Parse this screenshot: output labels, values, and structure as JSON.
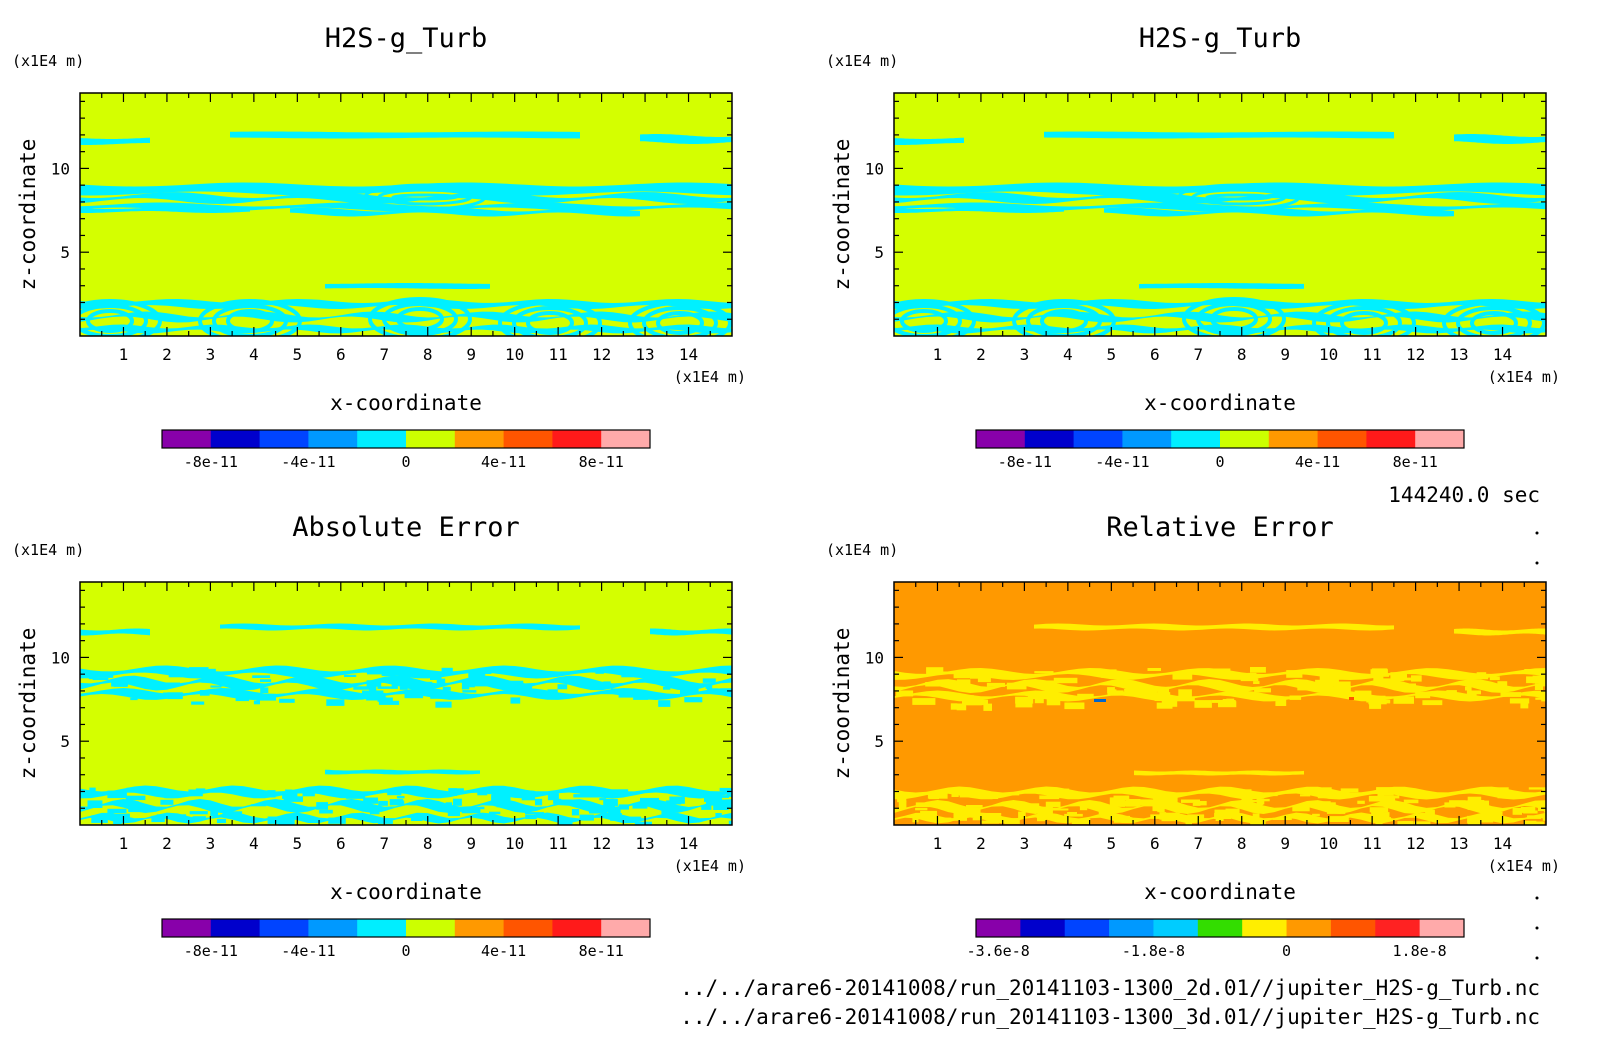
{
  "time_label": "144240.0 sec",
  "source_files": [
    "../../arare6-20141008/run_20141103-1300_2d.01//jupiter_H2S-g_Turb.nc",
    "../../arare6-20141008/run_20141103-1300_3d.01//jupiter_H2S-g_Turb.nc"
  ],
  "colors": {
    "background_field": "#d4ff00",
    "anomaly_field": "#00f0ff",
    "relative_background": "#ff9900",
    "relative_anomaly": "#ffee00",
    "relative_speck_blue": "#0066cc",
    "relative_speck_red": "#ff5500"
  },
  "chart_data": [
    {
      "type": "heatmap",
      "title": "H2S-g_Turb",
      "xlabel": "x-coordinate",
      "ylabel": "z-coordinate",
      "x_unit": "(x1E4 m)",
      "y_unit": "(x1E4 m)",
      "xlim": [
        0,
        15
      ],
      "ylim": [
        0,
        14.5
      ],
      "x_ticks": [
        1,
        2,
        3,
        4,
        5,
        6,
        7,
        8,
        9,
        10,
        11,
        12,
        13,
        14
      ],
      "y_ticks": [
        5,
        10
      ],
      "colorbar": {
        "colors": [
          "#8800aa",
          "#0000cc",
          "#0044ff",
          "#0099ff",
          "#00eeff",
          "#ccff00",
          "#ff9900",
          "#ff5500",
          "#ff1a1a",
          "#ffaaaa"
        ],
        "tick_labels": [
          "-8e-11",
          "-4e-11",
          "0",
          "4e-11",
          "8e-11"
        ]
      }
    },
    {
      "type": "heatmap",
      "title": "H2S-g_Turb",
      "xlabel": "x-coordinate",
      "ylabel": "z-coordinate",
      "x_unit": "(x1E4 m)",
      "y_unit": "(x1E4 m)",
      "xlim": [
        0,
        15
      ],
      "ylim": [
        0,
        14.5
      ],
      "x_ticks": [
        1,
        2,
        3,
        4,
        5,
        6,
        7,
        8,
        9,
        10,
        11,
        12,
        13,
        14
      ],
      "y_ticks": [
        5,
        10
      ],
      "colorbar": {
        "colors": [
          "#8800aa",
          "#0000cc",
          "#0044ff",
          "#0099ff",
          "#00eeff",
          "#ccff00",
          "#ff9900",
          "#ff5500",
          "#ff1a1a",
          "#ffaaaa"
        ],
        "tick_labels": [
          "-8e-11",
          "-4e-11",
          "0",
          "4e-11",
          "8e-11"
        ]
      }
    },
    {
      "type": "heatmap",
      "title": "Absolute Error",
      "xlabel": "x-coordinate",
      "ylabel": "z-coordinate",
      "x_unit": "(x1E4 m)",
      "y_unit": "(x1E4 m)",
      "xlim": [
        0,
        15
      ],
      "ylim": [
        0,
        14.5
      ],
      "x_ticks": [
        1,
        2,
        3,
        4,
        5,
        6,
        7,
        8,
        9,
        10,
        11,
        12,
        13,
        14
      ],
      "y_ticks": [
        5,
        10
      ],
      "colorbar": {
        "colors": [
          "#8800aa",
          "#0000cc",
          "#0044ff",
          "#0099ff",
          "#00eeff",
          "#ccff00",
          "#ff9900",
          "#ff5500",
          "#ff1a1a",
          "#ffaaaa"
        ],
        "tick_labels": [
          "-8e-11",
          "-4e-11",
          "0",
          "4e-11",
          "8e-11"
        ]
      }
    },
    {
      "type": "heatmap",
      "title": "Relative Error",
      "xlabel": "x-coordinate",
      "ylabel": "z-coordinate",
      "x_unit": "(x1E4 m)",
      "y_unit": "(x1E4 m)",
      "xlim": [
        0,
        15
      ],
      "ylim": [
        0,
        14.5
      ],
      "x_ticks": [
        1,
        2,
        3,
        4,
        5,
        6,
        7,
        8,
        9,
        10,
        11,
        12,
        13,
        14
      ],
      "y_ticks": [
        5,
        10
      ],
      "colorbar": {
        "colors": [
          "#8800aa",
          "#0000cc",
          "#0044ff",
          "#0099ff",
          "#00ccff",
          "#33dd00",
          "#ffee00",
          "#ff9900",
          "#ff5500",
          "#ff2222",
          "#ffaaaa"
        ],
        "tick_labels": [
          "-3.6e-8",
          "-1.8e-8",
          "0",
          "1.8e-8"
        ]
      }
    }
  ]
}
